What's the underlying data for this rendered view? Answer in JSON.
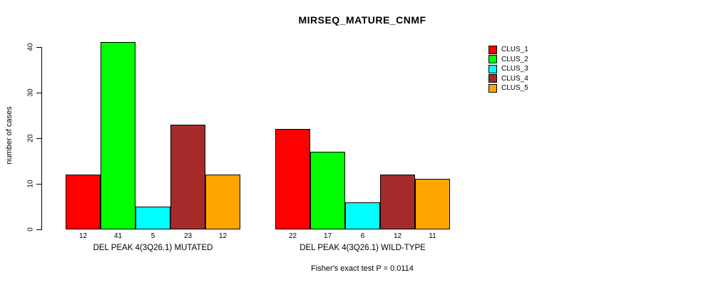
{
  "title": "MIRSEQ_MATURE_CNMF",
  "chart_data": {
    "type": "bar",
    "title": "MIRSEQ_MATURE_CNMF",
    "xlabel": "",
    "ylabel": "number of cases",
    "ylim": [
      0,
      40
    ],
    "yticks": [
      0,
      10,
      20,
      30,
      40
    ],
    "grid": false,
    "legend_position": "right",
    "categories": [
      "DEL PEAK 4(3Q26.1) MUTATED",
      "DEL PEAK 4(3Q26.1) WILD-TYPE"
    ],
    "series": [
      {
        "name": "CLUS_1",
        "color": "#FF0000",
        "values": [
          12,
          22
        ]
      },
      {
        "name": "CLUS_2",
        "color": "#00FF00",
        "values": [
          41,
          17
        ]
      },
      {
        "name": "CLUS_3",
        "color": "#00FFFF",
        "values": [
          5,
          6
        ]
      },
      {
        "name": "CLUS_4",
        "color": "#A52A2A",
        "values": [
          23,
          12
        ]
      },
      {
        "name": "CLUS_5",
        "color": "#FFA500",
        "values": [
          12,
          11
        ]
      }
    ],
    "bar_value_labels": [
      [
        12,
        41,
        5,
        23,
        12
      ],
      [
        22,
        17,
        6,
        12,
        11
      ]
    ],
    "annotation": "Fisher's exact test P = 0.0114"
  }
}
